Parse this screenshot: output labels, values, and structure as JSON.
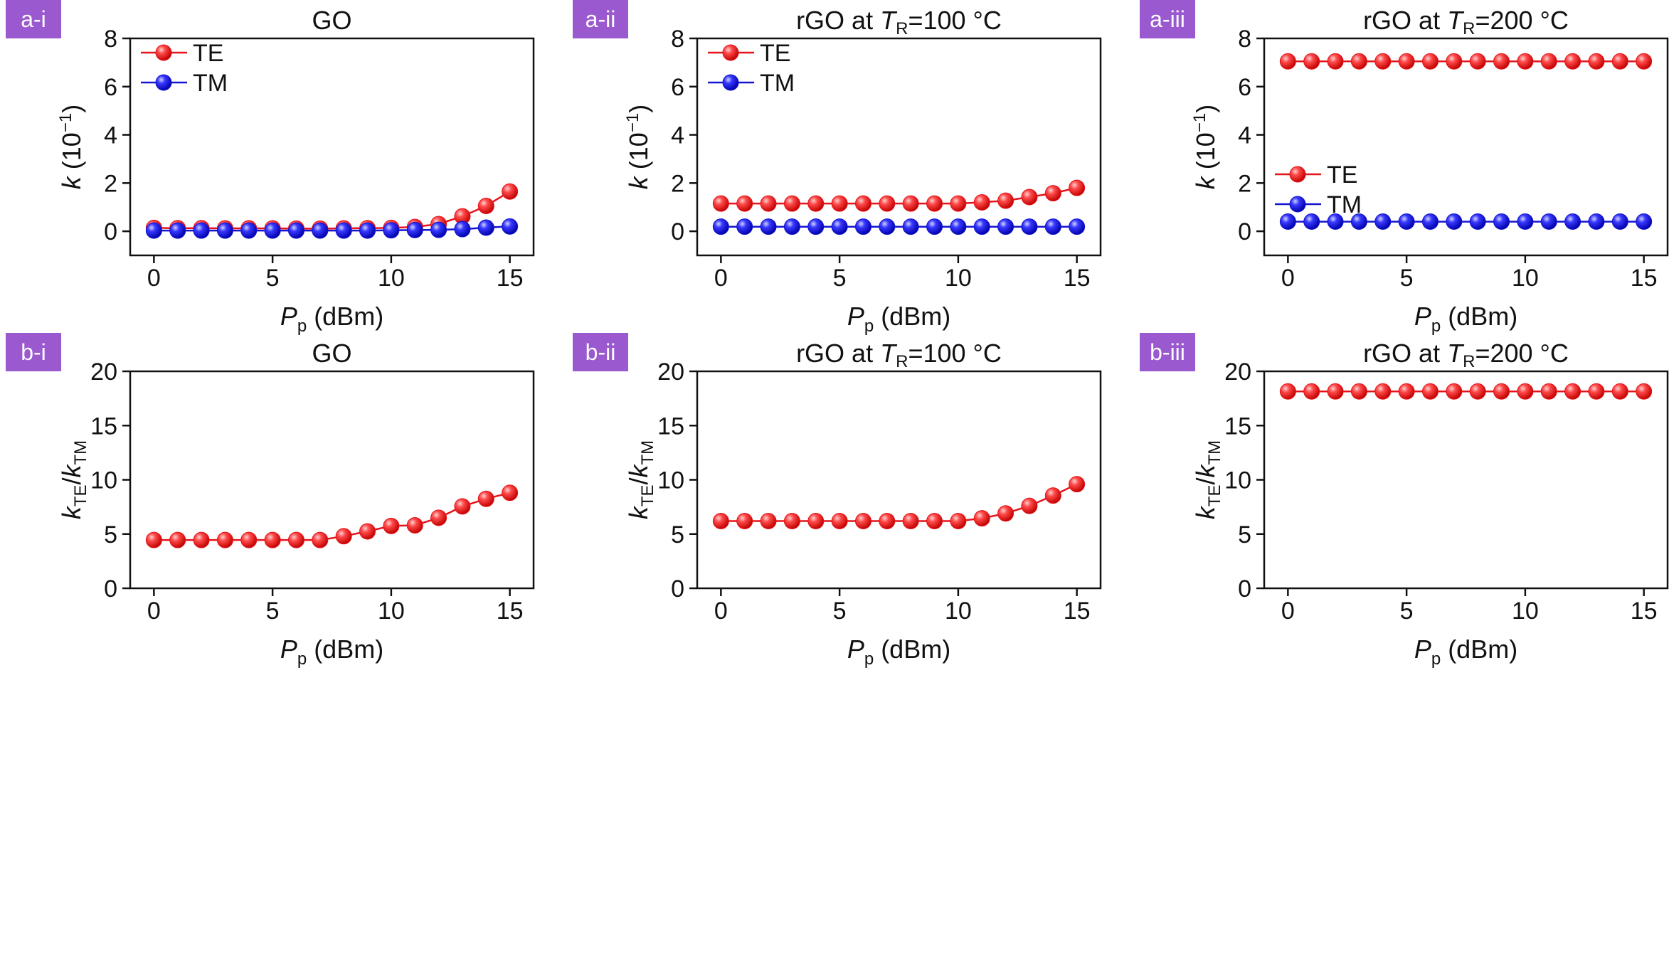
{
  "x_ticks": [
    "0",
    "5",
    "10",
    "15"
  ],
  "panel_label_color": "#9b59d0",
  "series_colors": {
    "TE": "#e5141b",
    "TM": "#1414d2"
  },
  "chart_data": [
    {
      "type": "line",
      "panel": "a-i",
      "title": "GO",
      "title_parts": [
        {
          "t": "GO"
        }
      ],
      "xlabel": {
        "main": "P",
        "sub": "p",
        "rest": " (dBm)"
      },
      "ylabel": {
        "kind": "k"
      },
      "xlim": [
        -1,
        16
      ],
      "ylim": [
        -1,
        8
      ],
      "yticks": [
        "0",
        "2",
        "4",
        "6",
        "8"
      ],
      "legend": "top-left",
      "x": [
        0,
        1,
        2,
        3,
        4,
        5,
        6,
        7,
        8,
        9,
        10,
        11,
        12,
        13,
        14,
        15
      ],
      "series": [
        {
          "name": "TE",
          "values": [
            0.14,
            0.13,
            0.13,
            0.12,
            0.12,
            0.12,
            0.11,
            0.11,
            0.12,
            0.13,
            0.14,
            0.18,
            0.3,
            0.62,
            1.05,
            1.65
          ]
        },
        {
          "name": "TM",
          "values": [
            0.03,
            0.03,
            0.03,
            0.03,
            0.03,
            0.03,
            0.03,
            0.03,
            0.03,
            0.03,
            0.04,
            0.05,
            0.06,
            0.09,
            0.15,
            0.2
          ]
        }
      ]
    },
    {
      "type": "line",
      "panel": "a-ii",
      "title": "rGO at TR=100 °C",
      "title_parts": [
        {
          "t": "rGO at "
        },
        {
          "t": "T",
          "i": true
        },
        {
          "t": "R",
          "sub": true
        },
        {
          "t": "=100 °C"
        }
      ],
      "xlabel": {
        "main": "P",
        "sub": "p",
        "rest": " (dBm)"
      },
      "ylabel": {
        "kind": "k"
      },
      "xlim": [
        -1,
        16
      ],
      "ylim": [
        -1,
        8
      ],
      "yticks": [
        "0",
        "2",
        "4",
        "6",
        "8"
      ],
      "legend": "top-left",
      "x": [
        0,
        1,
        2,
        3,
        4,
        5,
        6,
        7,
        8,
        9,
        10,
        11,
        12,
        13,
        14,
        15
      ],
      "series": [
        {
          "name": "TE",
          "values": [
            1.15,
            1.15,
            1.15,
            1.15,
            1.15,
            1.15,
            1.15,
            1.15,
            1.15,
            1.15,
            1.15,
            1.2,
            1.27,
            1.42,
            1.58,
            1.8
          ]
        },
        {
          "name": "TM",
          "values": [
            0.19,
            0.19,
            0.19,
            0.19,
            0.19,
            0.19,
            0.19,
            0.19,
            0.19,
            0.19,
            0.19,
            0.19,
            0.19,
            0.19,
            0.19,
            0.19
          ]
        }
      ]
    },
    {
      "type": "line",
      "panel": "a-iii",
      "title": "rGO at TR=200 °C",
      "title_parts": [
        {
          "t": "rGO at "
        },
        {
          "t": "T",
          "i": true
        },
        {
          "t": "R",
          "sub": true
        },
        {
          "t": "=200 °C"
        }
      ],
      "xlabel": {
        "main": "P",
        "sub": "p",
        "rest": " (dBm)"
      },
      "ylabel": {
        "kind": "k"
      },
      "xlim": [
        -1,
        16
      ],
      "ylim": [
        -1,
        8
      ],
      "yticks": [
        "0",
        "2",
        "4",
        "6",
        "8"
      ],
      "legend": "middle-left",
      "x": [
        0,
        1,
        2,
        3,
        4,
        5,
        6,
        7,
        8,
        9,
        10,
        11,
        12,
        13,
        14,
        15
      ],
      "series": [
        {
          "name": "TE",
          "values": [
            7.05,
            7.05,
            7.05,
            7.05,
            7.05,
            7.05,
            7.05,
            7.05,
            7.05,
            7.05,
            7.05,
            7.05,
            7.05,
            7.05,
            7.05,
            7.05
          ]
        },
        {
          "name": "TM",
          "values": [
            0.4,
            0.4,
            0.4,
            0.4,
            0.4,
            0.4,
            0.4,
            0.4,
            0.4,
            0.4,
            0.4,
            0.4,
            0.4,
            0.4,
            0.4,
            0.4
          ]
        }
      ]
    },
    {
      "type": "line",
      "panel": "b-i",
      "title": "GO",
      "title_parts": [
        {
          "t": "GO"
        }
      ],
      "xlabel": {
        "main": "P",
        "sub": "p",
        "rest": " (dBm)"
      },
      "ylabel": {
        "kind": "ratio"
      },
      "xlim": [
        -1,
        16
      ],
      "ylim": [
        0,
        20
      ],
      "yticks": [
        "0",
        "5",
        "10",
        "15",
        "20"
      ],
      "legend": "none",
      "x": [
        0,
        1,
        2,
        3,
        4,
        5,
        6,
        7,
        8,
        9,
        10,
        11,
        12,
        13,
        14,
        15
      ],
      "series": [
        {
          "values": [
            4.45,
            4.45,
            4.45,
            4.45,
            4.45,
            4.45,
            4.45,
            4.45,
            4.8,
            5.25,
            5.75,
            5.8,
            6.5,
            7.55,
            8.25,
            8.8
          ]
        }
      ]
    },
    {
      "type": "line",
      "panel": "b-ii",
      "title": "rGO at TR=100 °C",
      "title_parts": [
        {
          "t": "rGO at "
        },
        {
          "t": "T",
          "i": true
        },
        {
          "t": "R",
          "sub": true
        },
        {
          "t": "=100 °C"
        }
      ],
      "xlabel": {
        "main": "P",
        "sub": "p",
        "rest": " (dBm)"
      },
      "ylabel": {
        "kind": "ratio"
      },
      "xlim": [
        -1,
        16
      ],
      "ylim": [
        0,
        20
      ],
      "yticks": [
        "0",
        "5",
        "10",
        "15",
        "20"
      ],
      "legend": "none",
      "x": [
        0,
        1,
        2,
        3,
        4,
        5,
        6,
        7,
        8,
        9,
        10,
        11,
        12,
        13,
        14,
        15
      ],
      "series": [
        {
          "values": [
            6.2,
            6.2,
            6.2,
            6.2,
            6.2,
            6.2,
            6.2,
            6.2,
            6.2,
            6.2,
            6.2,
            6.45,
            6.9,
            7.6,
            8.55,
            9.6
          ]
        }
      ]
    },
    {
      "type": "line",
      "panel": "b-iii",
      "title": "rGO at TR=200 °C",
      "title_parts": [
        {
          "t": "rGO at "
        },
        {
          "t": "T",
          "i": true
        },
        {
          "t": "R",
          "sub": true
        },
        {
          "t": "=200 °C"
        }
      ],
      "xlabel": {
        "main": "P",
        "sub": "p",
        "rest": " (dBm)"
      },
      "ylabel": {
        "kind": "ratio"
      },
      "xlim": [
        -1,
        16
      ],
      "ylim": [
        0,
        20
      ],
      "yticks": [
        "0",
        "5",
        "10",
        "15",
        "20"
      ],
      "legend": "none",
      "x": [
        0,
        1,
        2,
        3,
        4,
        5,
        6,
        7,
        8,
        9,
        10,
        11,
        12,
        13,
        14,
        15
      ],
      "series": [
        {
          "values": [
            18.15,
            18.15,
            18.15,
            18.15,
            18.15,
            18.15,
            18.15,
            18.15,
            18.15,
            18.15,
            18.15,
            18.15,
            18.15,
            18.15,
            18.15,
            18.15
          ]
        }
      ]
    }
  ]
}
